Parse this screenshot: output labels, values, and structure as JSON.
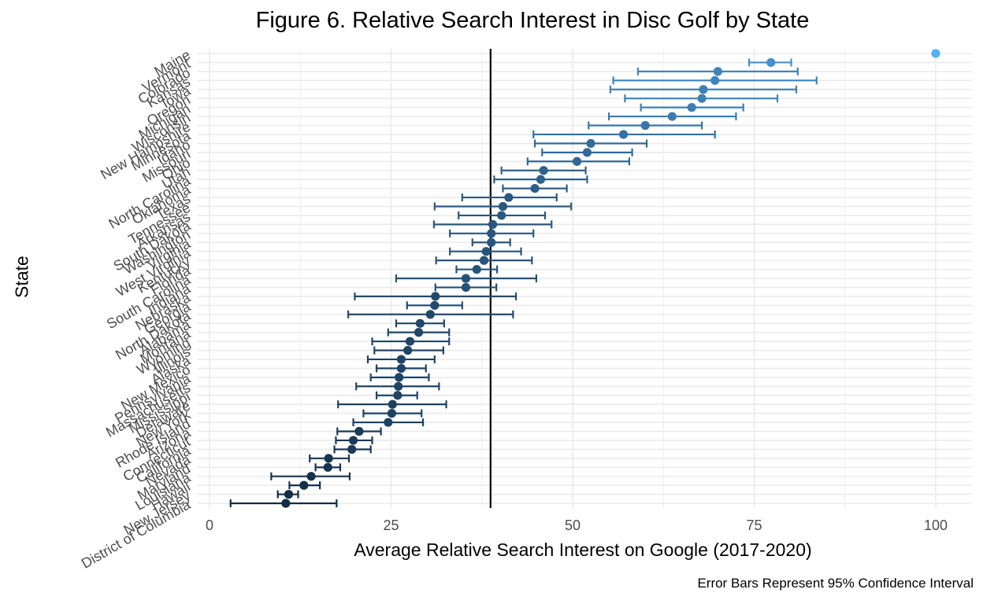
{
  "chart_data": {
    "type": "scatter",
    "title": "Figure 6. Relative Search Interest in Disc Golf by State",
    "xlabel": "Average Relative Search Interest on Google (2017-2020)",
    "ylabel": "State",
    "caption": "Error Bars Represent 95% Confidence Interval",
    "xlim": [
      0,
      100
    ],
    "x_ticks": [
      0,
      25,
      50,
      75,
      100
    ],
    "reference_line_x": 38.7,
    "grid": true,
    "legend": "none",
    "colors": {
      "low": "#132b43",
      "high": "#56b1f7",
      "reference": "#000000",
      "grid": "#ebebeb"
    },
    "points": [
      {
        "state": "Maine",
        "mean": 100,
        "lower": 100,
        "upper": 100
      },
      {
        "state": "Vermont",
        "mean": 77.3,
        "lower": 74.3,
        "upper": 80.1
      },
      {
        "state": "Colorado",
        "mean": 70.0,
        "lower": 59.0,
        "upper": 81.0
      },
      {
        "state": "Kansas",
        "mean": 69.6,
        "lower": 55.6,
        "upper": 83.6
      },
      {
        "state": "Iowa",
        "mean": 68.0,
        "lower": 55.2,
        "upper": 80.8
      },
      {
        "state": "Oregon",
        "mean": 67.8,
        "lower": 57.2,
        "upper": 78.2
      },
      {
        "state": "Michigan",
        "mean": 66.4,
        "lower": 59.4,
        "upper": 73.5
      },
      {
        "state": "Wisconsin",
        "mean": 63.7,
        "lower": 55.0,
        "upper": 72.5
      },
      {
        "state": "New Hampshire",
        "mean": 60.0,
        "lower": 52.2,
        "upper": 67.8
      },
      {
        "state": "Minnesota",
        "mean": 57.0,
        "lower": 44.6,
        "upper": 69.6
      },
      {
        "state": "Idaho",
        "mean": 52.5,
        "lower": 44.8,
        "upper": 60.2
      },
      {
        "state": "Missouri",
        "mean": 52.0,
        "lower": 45.8,
        "upper": 58.2
      },
      {
        "state": "Ohio",
        "mean": 50.6,
        "lower": 43.8,
        "upper": 57.8
      },
      {
        "state": "Utah",
        "mean": 46.0,
        "lower": 40.2,
        "upper": 51.8
      },
      {
        "state": "North Carolina",
        "mean": 45.6,
        "lower": 39.2,
        "upper": 52.0
      },
      {
        "state": "Oklahoma",
        "mean": 44.8,
        "lower": 40.4,
        "upper": 49.2
      },
      {
        "state": "Texas",
        "mean": 41.2,
        "lower": 34.8,
        "upper": 47.8
      },
      {
        "state": "Tennessee",
        "mean": 40.4,
        "lower": 31.0,
        "upper": 49.8
      },
      {
        "state": "Arkansas",
        "mean": 40.2,
        "lower": 34.3,
        "upper": 46.2
      },
      {
        "state": "South Dakota",
        "mean": 39.0,
        "lower": 30.9,
        "upper": 47.1
      },
      {
        "state": "Washington",
        "mean": 38.8,
        "lower": 33.1,
        "upper": 44.6
      },
      {
        "state": "Virginia",
        "mean": 38.8,
        "lower": 36.2,
        "upper": 41.4
      },
      {
        "state": "West Virginia",
        "mean": 38.1,
        "lower": 33.1,
        "upper": 42.9
      },
      {
        "state": "Kentucky",
        "mean": 37.8,
        "lower": 31.2,
        "upper": 44.4
      },
      {
        "state": "Florida",
        "mean": 36.8,
        "lower": 34.0,
        "upper": 39.6
      },
      {
        "state": "South Carolina",
        "mean": 35.3,
        "lower": 25.7,
        "upper": 45.0
      },
      {
        "state": "Indiana",
        "mean": 35.3,
        "lower": 31.1,
        "upper": 39.5
      },
      {
        "state": "Nebraska",
        "mean": 31.1,
        "lower": 20.0,
        "upper": 42.2
      },
      {
        "state": "Georgia",
        "mean": 31.0,
        "lower": 27.2,
        "upper": 34.8
      },
      {
        "state": "North Dakota",
        "mean": 30.4,
        "lower": 19.1,
        "upper": 41.8
      },
      {
        "state": "Alabama",
        "mean": 29.0,
        "lower": 25.7,
        "upper": 32.3
      },
      {
        "state": "Montana",
        "mean": 28.8,
        "lower": 24.6,
        "upper": 33.0
      },
      {
        "state": "Wyoming",
        "mean": 27.6,
        "lower": 22.4,
        "upper": 33.0
      },
      {
        "state": "Illinois",
        "mean": 27.3,
        "lower": 22.7,
        "upper": 32.2
      },
      {
        "state": "Alaska",
        "mean": 26.4,
        "lower": 21.8,
        "upper": 31.0
      },
      {
        "state": "New Mexico",
        "mean": 26.4,
        "lower": 23.0,
        "upper": 29.8
      },
      {
        "state": "Pennsylvania",
        "mean": 26.1,
        "lower": 22.2,
        "upper": 30.2
      },
      {
        "state": "Massachusetts",
        "mean": 26.0,
        "lower": 20.2,
        "upper": 31.6
      },
      {
        "state": "Mississippi",
        "mean": 25.9,
        "lower": 23.0,
        "upper": 28.6
      },
      {
        "state": "Delaware",
        "mean": 25.2,
        "lower": 17.7,
        "upper": 32.6
      },
      {
        "state": "New York",
        "mean": 25.1,
        "lower": 21.2,
        "upper": 29.2
      },
      {
        "state": "Rhode Island",
        "mean": 24.6,
        "lower": 19.8,
        "upper": 29.4
      },
      {
        "state": "Arizona",
        "mean": 20.6,
        "lower": 17.6,
        "upper": 23.6
      },
      {
        "state": "Connecticut",
        "mean": 19.8,
        "lower": 17.4,
        "upper": 22.4
      },
      {
        "state": "California",
        "mean": 19.6,
        "lower": 17.2,
        "upper": 22.2
      },
      {
        "state": "Nevada",
        "mean": 16.4,
        "lower": 13.8,
        "upper": 19.2
      },
      {
        "state": "Maryland",
        "mean": 16.3,
        "lower": 14.6,
        "upper": 18.0
      },
      {
        "state": "Louisiana",
        "mean": 14.0,
        "lower": 8.5,
        "upper": 19.3
      },
      {
        "state": "Hawaii",
        "mean": 13.0,
        "lower": 11.0,
        "upper": 15.2
      },
      {
        "state": "New Jersey",
        "mean": 10.9,
        "lower": 9.4,
        "upper": 12.2
      },
      {
        "state": "District of Columbia",
        "mean": 10.5,
        "lower": 2.9,
        "upper": 17.5
      }
    ]
  }
}
